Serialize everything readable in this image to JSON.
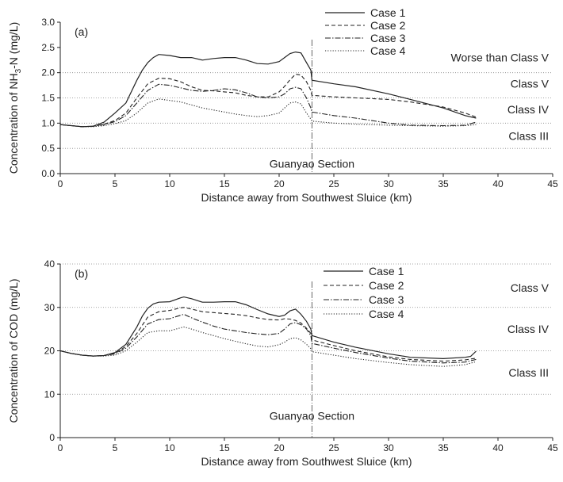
{
  "chart_data": [
    {
      "type": "line",
      "panel_label": "(a)",
      "xlabel": "Distance away from Southwest Sluice (km)",
      "ylabel": "Concentration of NH3-N (mg/L)",
      "ylabel_parts": [
        "Concentration of NH",
        "3",
        "-N (mg/L)"
      ],
      "xlim": [
        0,
        45
      ],
      "ylim": [
        0,
        3.0
      ],
      "xticks": [
        0,
        5,
        10,
        15,
        20,
        25,
        30,
        35,
        40,
        45
      ],
      "yticks": [
        "0.0",
        "0.5",
        "1.0",
        "1.5",
        "2.0",
        "2.5",
        "3.0"
      ],
      "class_lines": [
        0.5,
        1.0,
        1.5,
        2.0
      ],
      "class_labels": [
        {
          "text": "Worse than Class V",
          "y": 2.3
        },
        {
          "text": "Class V",
          "y": 1.78
        },
        {
          "text": "Class IV",
          "y": 1.27
        },
        {
          "text": "Class III",
          "y": 0.75
        }
      ],
      "vline": {
        "x": 23,
        "label": "Guanyao Section",
        "label_y": 0.2
      },
      "legend_position": "top-right",
      "series": [
        {
          "name": "Case 1",
          "dash": "solid",
          "x": [
            0,
            1,
            2,
            3,
            4,
            5,
            6,
            7,
            7.5,
            8,
            8.5,
            9,
            10,
            11,
            12,
            13,
            14,
            15,
            16,
            17,
            18,
            19,
            20,
            20.5,
            21,
            21.5,
            22,
            22.5,
            22.9,
            23,
            25,
            27,
            30,
            32,
            35,
            37,
            38
          ],
          "y": [
            0.97,
            0.95,
            0.93,
            0.94,
            1.02,
            1.2,
            1.4,
            1.85,
            2.05,
            2.2,
            2.3,
            2.36,
            2.34,
            2.3,
            2.3,
            2.25,
            2.28,
            2.3,
            2.3,
            2.25,
            2.18,
            2.17,
            2.22,
            2.3,
            2.38,
            2.41,
            2.39,
            2.2,
            2.05,
            1.85,
            1.78,
            1.72,
            1.58,
            1.47,
            1.3,
            1.15,
            1.1
          ]
        },
        {
          "name": "Case 2",
          "dash": "dashed",
          "x": [
            0,
            1,
            2,
            3,
            4,
            5,
            6,
            7,
            8,
            9,
            10,
            11,
            12,
            13,
            14,
            15,
            16,
            17,
            18,
            19,
            20,
            20.5,
            21,
            21.5,
            22,
            22.5,
            22.9,
            23,
            25,
            27,
            30,
            32,
            35,
            37,
            38
          ],
          "y": [
            0.97,
            0.95,
            0.93,
            0.94,
            0.98,
            1.05,
            1.2,
            1.5,
            1.78,
            1.89,
            1.88,
            1.82,
            1.72,
            1.65,
            1.64,
            1.62,
            1.6,
            1.55,
            1.52,
            1.52,
            1.62,
            1.73,
            1.86,
            1.97,
            1.95,
            1.82,
            1.65,
            1.55,
            1.52,
            1.5,
            1.47,
            1.42,
            1.32,
            1.2,
            1.12
          ]
        },
        {
          "name": "Case 3",
          "dash": "dashdot",
          "x": [
            0,
            1,
            2,
            3,
            4,
            5,
            6,
            7,
            8,
            9,
            10,
            11,
            12,
            13,
            14,
            15,
            16,
            17,
            18,
            19,
            20,
            20.5,
            21,
            21.5,
            22,
            22.5,
            22.9,
            23,
            25,
            27,
            30,
            32,
            35,
            37,
            38
          ],
          "y": [
            0.97,
            0.95,
            0.93,
            0.94,
            0.97,
            1.03,
            1.15,
            1.4,
            1.65,
            1.77,
            1.75,
            1.7,
            1.65,
            1.63,
            1.65,
            1.68,
            1.66,
            1.6,
            1.52,
            1.5,
            1.52,
            1.58,
            1.68,
            1.71,
            1.68,
            1.5,
            1.3,
            1.22,
            1.15,
            1.1,
            1.0,
            0.96,
            0.95,
            0.96,
            1.02
          ]
        },
        {
          "name": "Case 4",
          "dash": "dotted",
          "x": [
            0,
            1,
            2,
            3,
            4,
            5,
            6,
            7,
            8,
            9,
            10,
            11,
            12,
            13,
            14,
            15,
            16,
            17,
            18,
            19,
            20,
            20.5,
            21,
            21.5,
            22,
            22.5,
            22.9,
            23,
            25,
            27,
            30,
            32,
            35,
            37,
            38
          ],
          "y": [
            0.97,
            0.95,
            0.93,
            0.93,
            0.95,
            0.99,
            1.05,
            1.2,
            1.4,
            1.48,
            1.45,
            1.42,
            1.36,
            1.3,
            1.26,
            1.22,
            1.18,
            1.15,
            1.13,
            1.15,
            1.2,
            1.3,
            1.4,
            1.42,
            1.38,
            1.2,
            1.08,
            1.04,
            1.0,
            0.98,
            0.96,
            0.95,
            0.94,
            0.95,
            0.97
          ]
        }
      ]
    },
    {
      "type": "line",
      "panel_label": "(b)",
      "xlabel": "Distance away from Southwest Sluice (km)",
      "ylabel": "Concentration of COD (mg/L)",
      "xlim": [
        0,
        45
      ],
      "ylim": [
        0,
        40
      ],
      "xticks": [
        0,
        5,
        10,
        15,
        20,
        25,
        30,
        35,
        40,
        45
      ],
      "yticks": [
        "0",
        "10",
        "20",
        "30",
        "40"
      ],
      "class_lines": [
        10,
        20,
        30,
        40
      ],
      "class_labels": [
        {
          "text": "Class V",
          "y": 34.5
        },
        {
          "text": "Class IV",
          "y": 25
        },
        {
          "text": "Class III",
          "y": 15
        }
      ],
      "vline": {
        "x": 23,
        "label": "Guanyao Section",
        "label_y": 5
      },
      "legend_position": "top-right",
      "series": [
        {
          "name": "Case 1",
          "dash": "solid",
          "x": [
            0,
            1,
            2,
            3,
            4,
            5,
            6,
            7,
            7.5,
            8,
            8.5,
            9,
            10,
            11,
            11.3,
            12,
            13,
            14,
            15,
            16,
            17,
            18,
            19,
            20,
            20.5,
            21,
            21.5,
            22,
            22.5,
            22.9,
            23,
            25,
            27,
            30,
            32,
            35,
            37,
            37.5,
            38
          ],
          "y": [
            20,
            19.4,
            19,
            18.8,
            18.9,
            19.6,
            21.5,
            25.5,
            28,
            29.8,
            30.8,
            31.2,
            31.3,
            32.2,
            32.4,
            32,
            31.2,
            31.2,
            31.3,
            31.3,
            30.6,
            29.5,
            28.5,
            27.9,
            28.2,
            29.2,
            29.6,
            28.4,
            26.8,
            25,
            23.5,
            22,
            20.8,
            19.3,
            18.5,
            18.2,
            18.5,
            18.7,
            19.9
          ]
        },
        {
          "name": "Case 2",
          "dash": "dashed",
          "x": [
            0,
            1,
            2,
            3,
            4,
            5,
            6,
            7,
            8,
            9,
            10,
            11,
            11.3,
            12,
            13,
            14,
            15,
            16,
            17,
            18,
            19,
            20,
            20.5,
            21,
            21.5,
            22,
            22.5,
            22.9,
            23,
            25,
            27,
            30,
            32,
            35,
            37,
            38
          ],
          "y": [
            20,
            19.4,
            19,
            18.8,
            18.9,
            19.4,
            21,
            24,
            27.8,
            29,
            29.3,
            29.9,
            30,
            29.6,
            29,
            28.8,
            28.6,
            28.4,
            28.1,
            27.6,
            27.2,
            27.1,
            27.4,
            27.3,
            27,
            26.4,
            25.2,
            24,
            22.5,
            21.2,
            20,
            18.6,
            18,
            17.6,
            17.9,
            18.3
          ]
        },
        {
          "name": "Case 3",
          "dash": "dashdot",
          "x": [
            0,
            1,
            2,
            3,
            4,
            5,
            6,
            7,
            8,
            9,
            10,
            11,
            11.3,
            12,
            13,
            14,
            15,
            16,
            17,
            18,
            19,
            20,
            20.5,
            21,
            21.5,
            22,
            22.5,
            22.9,
            23,
            25,
            27,
            30,
            32,
            35,
            37,
            38
          ],
          "y": [
            20,
            19.4,
            19,
            18.8,
            18.9,
            19.3,
            20.6,
            23.2,
            26.2,
            27.2,
            27.4,
            28.2,
            28.4,
            27.6,
            26.6,
            25.7,
            25,
            24.6,
            24.2,
            23.9,
            23.7,
            24,
            25,
            26.2,
            26.5,
            26,
            25,
            23.5,
            21.7,
            20.6,
            19.6,
            18.3,
            17.6,
            17.2,
            17.4,
            18
          ]
        },
        {
          "name": "Case 4",
          "dash": "dotted",
          "x": [
            0,
            1,
            2,
            3,
            4,
            5,
            6,
            7,
            8,
            9,
            10,
            11,
            11.3,
            12,
            13,
            14,
            15,
            16,
            17,
            18,
            19,
            20,
            20.5,
            21,
            21.5,
            22,
            22.5,
            22.9,
            23,
            25,
            27,
            30,
            32,
            35,
            37,
            38
          ],
          "y": [
            20,
            19.4,
            19,
            18.8,
            18.8,
            19,
            20,
            22,
            24.2,
            24.6,
            24.6,
            25.3,
            25.5,
            25,
            24.2,
            23.5,
            22.8,
            22.2,
            21.6,
            21.1,
            20.9,
            21.4,
            22,
            22.8,
            23,
            22.5,
            21.5,
            20.5,
            19.8,
            19,
            18.2,
            17.3,
            16.8,
            16.4,
            16.8,
            17.5
          ]
        }
      ]
    }
  ]
}
